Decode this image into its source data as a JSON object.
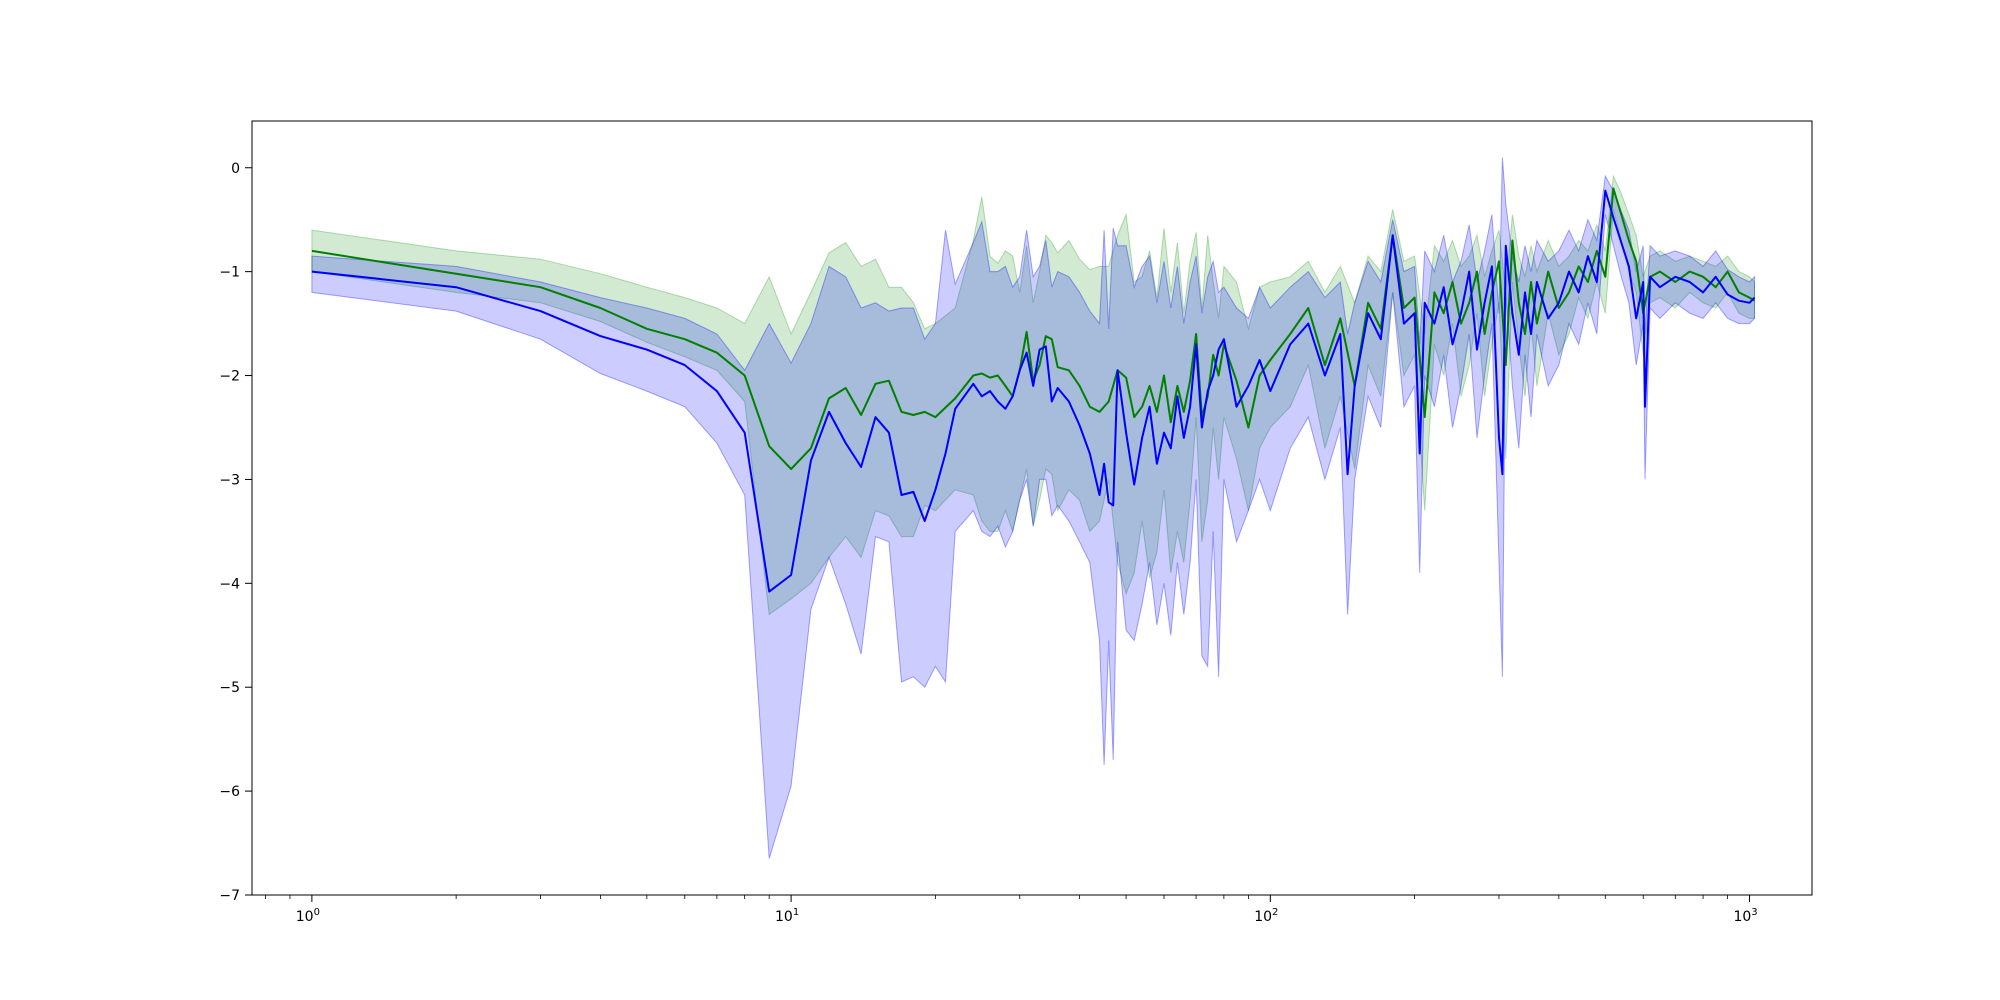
{
  "chart_data": {
    "type": "line",
    "title": "",
    "xlabel": "",
    "ylabel": "",
    "xscale": "log",
    "xlim": [
      0.75,
      1350
    ],
    "ylim": [
      -7,
      0.45
    ],
    "grid": false,
    "legend": "none",
    "x_ticks": [
      {
        "base": "10",
        "exp": "0",
        "value": 1
      },
      {
        "base": "10",
        "exp": "1",
        "value": 10
      },
      {
        "base": "10",
        "exp": "2",
        "value": 100
      },
      {
        "base": "10",
        "exp": "3",
        "value": 1000
      }
    ],
    "y_ticks": [
      {
        "label": "0",
        "value": 0
      },
      {
        "label": "−1",
        "value": -1
      },
      {
        "label": "−2",
        "value": -2
      },
      {
        "label": "−3",
        "value": -3
      },
      {
        "label": "−4",
        "value": -4
      },
      {
        "label": "−5",
        "value": -5
      },
      {
        "label": "−6",
        "value": -6
      },
      {
        "label": "−7",
        "value": -7
      }
    ],
    "series": [
      {
        "color": "#008000",
        "band_color": "#2ca02c",
        "band_opacity": 0.22,
        "x": [
          1,
          2,
          3,
          4,
          5,
          6,
          7,
          8,
          9,
          10,
          11,
          12,
          13,
          14,
          15,
          16,
          17,
          18,
          19,
          20,
          22,
          24,
          25,
          26,
          27,
          28,
          29,
          30,
          31,
          32,
          33,
          34,
          35,
          36,
          38,
          40,
          42,
          44,
          46,
          48,
          50,
          52,
          54,
          56,
          58,
          60,
          62,
          64,
          66,
          68,
          70,
          72,
          74,
          76,
          78,
          80,
          85,
          90,
          95,
          100,
          110,
          120,
          130,
          140,
          150,
          160,
          170,
          180,
          190,
          200,
          210,
          220,
          230,
          240,
          250,
          260,
          270,
          280,
          290,
          300,
          310,
          320,
          330,
          340,
          350,
          360,
          380,
          400,
          420,
          440,
          460,
          480,
          500,
          520,
          540,
          560,
          580,
          600,
          620,
          650,
          700,
          750,
          800,
          850,
          900,
          950,
          1000,
          1024
        ],
        "y": [
          -0.8,
          -1.02,
          -1.15,
          -1.35,
          -1.55,
          -1.65,
          -1.78,
          -2.0,
          -2.68,
          -2.9,
          -2.7,
          -2.22,
          -2.12,
          -2.38,
          -2.08,
          -2.05,
          -2.35,
          -2.38,
          -2.35,
          -2.4,
          -2.22,
          -2.0,
          -1.98,
          -2.02,
          -2.0,
          -2.1,
          -2.2,
          -1.95,
          -1.58,
          -2.05,
          -1.9,
          -1.62,
          -1.65,
          -1.92,
          -1.95,
          -2.1,
          -2.3,
          -2.35,
          -2.25,
          -1.95,
          -2.02,
          -2.4,
          -2.3,
          -2.1,
          -2.35,
          -2.0,
          -2.45,
          -2.1,
          -2.35,
          -2.05,
          -1.6,
          -2.4,
          -2.2,
          -1.8,
          -2.0,
          -1.7,
          -2.05,
          -2.5,
          -2.0,
          -1.85,
          -1.6,
          -1.35,
          -1.9,
          -1.45,
          -2.1,
          -1.3,
          -1.55,
          -0.65,
          -1.35,
          -1.25,
          -2.4,
          -1.2,
          -1.4,
          -1.1,
          -1.5,
          -1.3,
          -1.0,
          -1.6,
          -1.2,
          -0.9,
          -1.9,
          -0.7,
          -1.3,
          -1.6,
          -1.1,
          -1.5,
          -1.0,
          -1.35,
          -1.2,
          -0.95,
          -1.1,
          -0.8,
          -1.05,
          -0.2,
          -0.45,
          -0.7,
          -0.9,
          -1.4,
          -1.05,
          -1.0,
          -1.1,
          -1.0,
          -1.05,
          -1.15,
          -1.0,
          -1.2,
          -1.25,
          -1.28
        ],
        "lower": [
          -1.0,
          -1.2,
          -1.3,
          -1.48,
          -1.68,
          -1.82,
          -1.95,
          -2.25,
          -4.3,
          -4.15,
          -4.0,
          -3.75,
          -3.55,
          -3.75,
          -3.3,
          -3.35,
          -3.55,
          -3.55,
          -3.25,
          -3.3,
          -3.1,
          -3.15,
          -3.4,
          -3.5,
          -3.5,
          -3.3,
          -3.5,
          -3.2,
          -2.9,
          -3.45,
          -3.2,
          -2.9,
          -2.95,
          -3.3,
          -3.1,
          -3.2,
          -3.5,
          -3.4,
          -3.0,
          -3.8,
          -4.1,
          -3.9,
          -3.4,
          -3.95,
          -3.7,
          -3.1,
          -3.9,
          -3.5,
          -3.8,
          -3.2,
          -2.4,
          -3.6,
          -3.2,
          -2.5,
          -3.0,
          -2.4,
          -2.8,
          -3.3,
          -2.7,
          -2.5,
          -2.3,
          -1.9,
          -2.7,
          -2.2,
          -2.9,
          -1.9,
          -2.2,
          -1.2,
          -2.0,
          -1.8,
          -3.3,
          -1.7,
          -2.0,
          -1.5,
          -2.2,
          -1.9,
          -1.4,
          -2.2,
          -1.7,
          -1.3,
          -2.8,
          -1.1,
          -1.7,
          -2.2,
          -1.5,
          -2.1,
          -1.4,
          -1.8,
          -1.6,
          -1.25,
          -1.45,
          -1.1,
          -1.4,
          -0.4,
          -0.7,
          -1.0,
          -1.2,
          -1.8,
          -1.3,
          -1.25,
          -1.35,
          -1.2,
          -1.3,
          -1.35,
          -1.2,
          -1.4,
          -1.45,
          -1.45
        ],
        "upper": [
          -0.6,
          -0.8,
          -0.88,
          -1.02,
          -1.15,
          -1.25,
          -1.35,
          -1.5,
          -1.05,
          -1.6,
          -1.2,
          -0.82,
          -0.72,
          -0.95,
          -0.88,
          -1.15,
          -1.15,
          -1.3,
          -1.55,
          -1.5,
          -1.35,
          -0.7,
          -0.28,
          -0.85,
          -0.92,
          -0.8,
          -0.85,
          -1.2,
          -0.75,
          -1.3,
          -1.0,
          -0.65,
          -0.72,
          -0.82,
          -0.7,
          -0.88,
          -0.98,
          -0.95,
          -0.95,
          -0.65,
          -0.45,
          -1.1,
          -1.05,
          -0.8,
          -1.25,
          -0.58,
          -1.2,
          -0.72,
          -1.4,
          -0.9,
          -0.62,
          -1.35,
          -0.65,
          -1.1,
          -1.45,
          -0.95,
          -1.1,
          -1.55,
          -1.15,
          -1.1,
          -1.05,
          -0.9,
          -1.2,
          -0.95,
          -1.3,
          -0.85,
          -1.0,
          -0.4,
          -0.9,
          -0.85,
          -1.6,
          -0.75,
          -0.9,
          -0.7,
          -0.95,
          -0.85,
          -0.65,
          -1.05,
          -0.8,
          -0.6,
          -1.2,
          -0.45,
          -0.85,
          -1.05,
          -0.75,
          -1.0,
          -0.7,
          -0.95,
          -0.85,
          -0.7,
          -0.8,
          -0.55,
          -0.8,
          -0.08,
          -0.25,
          -0.45,
          -0.65,
          -1.05,
          -0.85,
          -0.8,
          -0.9,
          -0.85,
          -0.9,
          -0.95,
          -0.85,
          -1.0,
          -1.05,
          -1.1
        ]
      },
      {
        "color": "#0000ff",
        "band_color": "#0000ff",
        "band_opacity": 0.2,
        "x": [
          1,
          2,
          3,
          4,
          5,
          6,
          7,
          8,
          9,
          10,
          11,
          12,
          13,
          14,
          15,
          16,
          17,
          18,
          19,
          20,
          21,
          22,
          24,
          25,
          26,
          27,
          28,
          29,
          30,
          31,
          32,
          33,
          34,
          35,
          36,
          38,
          40,
          42,
          44,
          45,
          46,
          47,
          48,
          50,
          52,
          54,
          56,
          58,
          60,
          62,
          64,
          66,
          68,
          70,
          72,
          74,
          76,
          78,
          80,
          85,
          90,
          95,
          100,
          110,
          120,
          130,
          140,
          145,
          150,
          160,
          170,
          180,
          190,
          200,
          205,
          210,
          220,
          230,
          240,
          250,
          260,
          270,
          280,
          290,
          300,
          305,
          310,
          320,
          330,
          340,
          350,
          360,
          380,
          400,
          420,
          440,
          460,
          480,
          500,
          520,
          540,
          560,
          580,
          600,
          605,
          620,
          650,
          700,
          750,
          800,
          850,
          900,
          950,
          1000,
          1024
        ],
        "y": [
          -1.0,
          -1.15,
          -1.38,
          -1.62,
          -1.75,
          -1.9,
          -2.15,
          -2.55,
          -4.08,
          -3.92,
          -2.82,
          -2.35,
          -2.65,
          -2.88,
          -2.4,
          -2.55,
          -3.15,
          -3.12,
          -3.4,
          -3.1,
          -2.75,
          -2.32,
          -2.08,
          -2.2,
          -2.15,
          -2.25,
          -2.32,
          -2.2,
          -1.95,
          -1.78,
          -2.1,
          -1.75,
          -1.72,
          -2.25,
          -2.12,
          -2.25,
          -2.48,
          -2.75,
          -3.15,
          -2.85,
          -3.22,
          -3.25,
          -1.95,
          -2.55,
          -3.05,
          -2.6,
          -2.3,
          -2.85,
          -2.55,
          -2.7,
          -2.2,
          -2.6,
          -2.3,
          -1.7,
          -2.5,
          -2.15,
          -2.0,
          -1.75,
          -1.65,
          -2.3,
          -2.1,
          -1.85,
          -2.15,
          -1.7,
          -1.5,
          -2.0,
          -1.6,
          -2.95,
          -2.1,
          -1.4,
          -1.65,
          -0.65,
          -1.5,
          -1.4,
          -2.75,
          -1.3,
          -1.5,
          -1.15,
          -1.7,
          -1.4,
          -1.0,
          -1.75,
          -1.3,
          -0.95,
          -2.6,
          -2.95,
          -0.75,
          -1.4,
          -1.8,
          -1.2,
          -1.6,
          -1.1,
          -1.45,
          -1.3,
          -1.0,
          -1.2,
          -0.85,
          -1.1,
          -0.22,
          -0.48,
          -0.72,
          -0.95,
          -1.45,
          -1.1,
          -2.3,
          -1.05,
          -1.15,
          -1.05,
          -1.1,
          -1.2,
          -1.05,
          -1.22,
          -1.28,
          -1.3,
          -1.25
        ],
        "lower": [
          -1.2,
          -1.38,
          -1.65,
          -1.98,
          -2.15,
          -2.3,
          -2.65,
          -3.15,
          -6.65,
          -5.95,
          -4.25,
          -3.75,
          -4.2,
          -4.68,
          -3.55,
          -3.6,
          -4.95,
          -4.9,
          -5.0,
          -4.8,
          -4.95,
          -3.5,
          -3.3,
          -3.5,
          -3.55,
          -3.45,
          -3.65,
          -3.5,
          -3.2,
          -3.0,
          -3.45,
          -3.0,
          -3.0,
          -3.35,
          -3.25,
          -3.4,
          -3.6,
          -3.8,
          -4.55,
          -5.75,
          -4.55,
          -5.7,
          -3.6,
          -4.45,
          -4.55,
          -4.2,
          -3.8,
          -4.4,
          -4.0,
          -4.5,
          -3.8,
          -4.3,
          -3.8,
          -3.0,
          -4.7,
          -4.8,
          -3.5,
          -4.9,
          -3.0,
          -3.6,
          -3.3,
          -3.0,
          -3.3,
          -2.7,
          -2.4,
          -3.0,
          -2.5,
          -4.3,
          -3.0,
          -2.2,
          -2.5,
          -1.2,
          -2.3,
          -2.1,
          -3.9,
          -2.0,
          -2.3,
          -1.8,
          -2.5,
          -2.1,
          -1.6,
          -2.6,
          -2.0,
          -1.5,
          -3.8,
          -4.9,
          -1.2,
          -2.1,
          -2.7,
          -1.8,
          -2.4,
          -1.6,
          -2.1,
          -1.9,
          -1.5,
          -1.7,
          -1.3,
          -1.6,
          -0.45,
          -0.75,
          -1.05,
          -1.3,
          -1.9,
          -1.5,
          -3.0,
          -1.35,
          -1.45,
          -1.3,
          -1.4,
          -1.45,
          -1.3,
          -1.45,
          -1.5,
          -1.5,
          -1.45
        ],
        "upper": [
          -0.85,
          -0.95,
          -1.1,
          -1.25,
          -1.35,
          -1.45,
          -1.6,
          -1.95,
          -1.5,
          -1.88,
          -1.5,
          -0.95,
          -1.05,
          -1.35,
          -1.3,
          -1.38,
          -1.35,
          -1.35,
          -1.65,
          -1.5,
          -0.6,
          -1.12,
          -0.72,
          -0.52,
          -1.0,
          -1.0,
          -0.95,
          -1.15,
          -1.05,
          -0.6,
          -1.05,
          -0.95,
          -0.7,
          -1.15,
          -1.0,
          -1.05,
          -1.2,
          -1.38,
          -1.5,
          -0.6,
          -1.55,
          -0.58,
          -0.75,
          -0.75,
          -1.15,
          -0.95,
          -0.85,
          -1.3,
          -0.9,
          -1.35,
          -0.95,
          -1.5,
          -1.1,
          -0.85,
          -1.4,
          -1.05,
          -0.9,
          -1.2,
          -1.15,
          -1.35,
          -1.45,
          -1.15,
          -1.35,
          -1.15,
          -1.0,
          -1.25,
          -1.1,
          -1.6,
          -1.3,
          -0.9,
          -1.1,
          -0.5,
          -1.0,
          -0.95,
          -1.7,
          -0.8,
          -1.0,
          -0.65,
          -1.1,
          -0.9,
          -0.55,
          -1.1,
          -0.8,
          -0.45,
          -1.4,
          0.1,
          -0.35,
          -0.85,
          -1.1,
          -0.75,
          -1.0,
          -0.7,
          -0.9,
          -0.8,
          -0.6,
          -0.8,
          -0.5,
          -0.7,
          -0.08,
          -0.22,
          -0.42,
          -0.6,
          -1.0,
          -0.75,
          -1.6,
          -0.75,
          -0.85,
          -0.8,
          -0.85,
          -0.95,
          -0.8,
          -0.98,
          -1.05,
          -1.1,
          -1.05
        ]
      }
    ]
  }
}
